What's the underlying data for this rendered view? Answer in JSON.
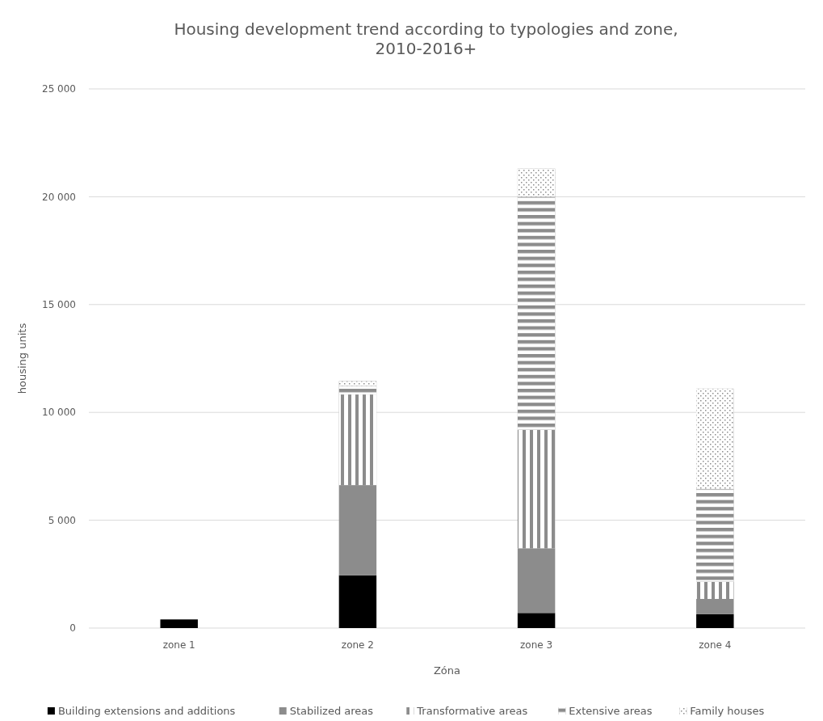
{
  "chart_data": {
    "type": "bar",
    "title": "Housing development trend according to typologies and zone,\n2010-2016+",
    "xlabel": "Zóna",
    "ylabel": "housing units",
    "categories": [
      "zone 1",
      "zone 2",
      "zone 3",
      "zone 4"
    ],
    "stacked": true,
    "series": [
      {
        "name": "Building extensions and additions",
        "color": "#000000",
        "values": [
          400,
          2450,
          700,
          650
        ]
      },
      {
        "name": "Stabilized areas",
        "color": "#8c8c8c",
        "values": [
          0,
          4180,
          3000,
          700
        ]
      },
      {
        "name": "Transformative areas",
        "color": "#8c8c8c",
        "values": [
          0,
          4200,
          5500,
          800
        ]
      },
      {
        "name": "Extensive areas",
        "color": "#8c8c8c",
        "values": [
          0,
          400,
          10800,
          4300
        ]
      },
      {
        "name": "Family houses",
        "color": "#8c8c8c",
        "values": [
          0,
          220,
          1300,
          4650
        ]
      }
    ],
    "ylim": [
      0,
      25000
    ],
    "yticks": [
      {
        "value": 0,
        "label": "0"
      },
      {
        "value": 5000,
        "label": "5 000"
      },
      {
        "value": 10000,
        "label": "10 000"
      },
      {
        "value": 15000,
        "label": "15 000"
      },
      {
        "value": 20000,
        "label": "20 000"
      },
      {
        "value": 25000,
        "label": "25 000"
      }
    ],
    "grid": "y",
    "legend": "bottom"
  }
}
